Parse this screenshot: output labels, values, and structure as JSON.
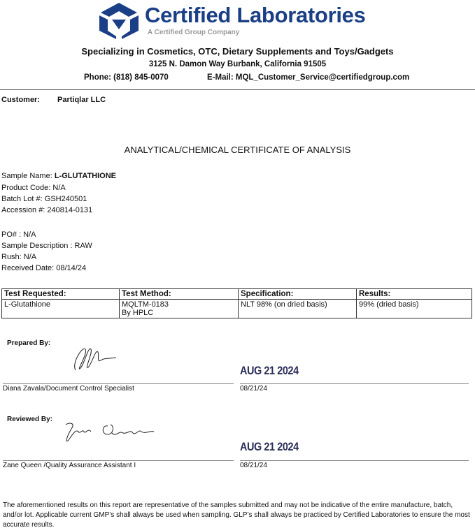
{
  "header": {
    "brand": "Certified Laboratories",
    "subbrand": "A Certified Group Company",
    "tagline": "Specializing in Cosmetics, OTC, Dietary Supplements and Toys/Gadgets",
    "address": "3125 N. Damon Way Burbank, California 91505",
    "phone": "Phone: (818) 845-0070",
    "email": "E-Mail: MQL_Customer_Service@certifiedgroup.com",
    "brand_color": "#1b3f86"
  },
  "customer": {
    "label": "Customer:",
    "value": "Partiqlar LLC"
  },
  "title": "ANALYTICAL/CHEMICAL CERTIFICATE OF ANALYSIS",
  "sample": {
    "name_label": "Sample Name: ",
    "name": "L-GLUTATHIONE",
    "product_code": "Product Code: N/A",
    "batch": "Batch Lot #: GSH240501",
    "accession": "Accession #: 240814-0131",
    "po": "PO# : N/A",
    "description": "Sample Description : RAW",
    "rush": "Rush: N/A",
    "received": "Received Date: 08/14/24"
  },
  "table": {
    "headers": [
      "Test Requested:",
      "Test Method:",
      "Specification:",
      "Results:"
    ],
    "rows": [
      [
        "L-Glutathione",
        "MQLTM-0183",
        "NLT 98% (on dried basis)",
        "99% (dried basis)"
      ]
    ],
    "method_line2": "By HPLC"
  },
  "prepared": {
    "label": "Prepared By:",
    "stamp": "AUG 21 2024",
    "name": "Diana Zavala/Document Control Specialist",
    "date": "08/21/24"
  },
  "reviewed": {
    "label": "Reviewed By:",
    "stamp": "AUG 21 2024",
    "name": "Zane Queen /Quality Assurance Assistant I",
    "date": "08/21/24"
  },
  "footer": "The aforementioned results on this report are representative of the samples submitted and may not be indicative of the entire manufacture, batch, and/or lot. Applicable current GMP’s shall always be used when sampling. GLP’s shall always be practiced by Certified Laboratories to ensure the most accurate results."
}
